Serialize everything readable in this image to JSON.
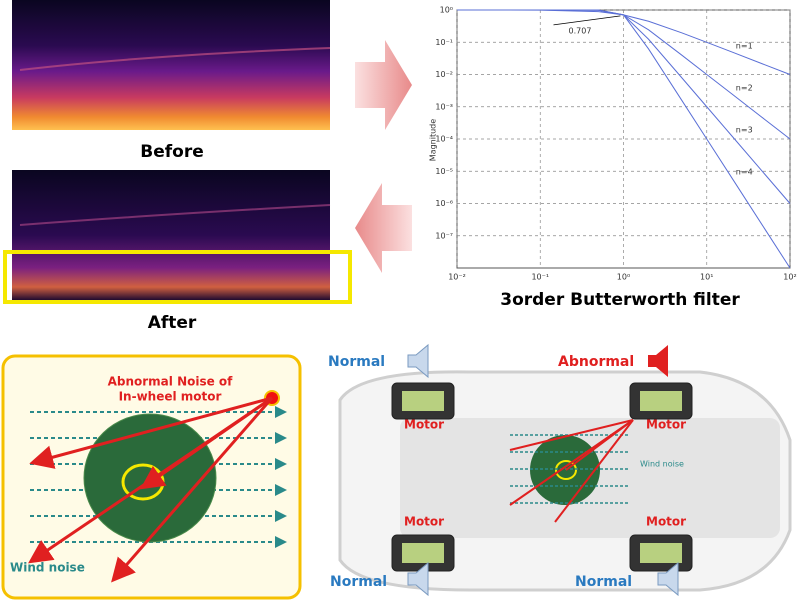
{
  "chart_data": {
    "type": "line",
    "title": "3order Butterworth filter",
    "y_label": "Magnitude",
    "log_x": true,
    "log_y": true,
    "grid": true,
    "x": [
      0.01,
      0.1,
      0.5,
      1,
      2,
      5,
      10,
      20,
      50,
      100
    ],
    "series": [
      {
        "name": "n=1",
        "color": "#5a6fd6",
        "values": [
          1,
          0.995,
          0.894,
          0.707,
          0.447,
          0.196,
          0.0995,
          0.05,
          0.02,
          0.01
        ]
      },
      {
        "name": "n=2",
        "color": "#5a6fd6",
        "values": [
          1,
          1,
          0.97,
          0.707,
          0.243,
          0.04,
          0.01,
          0.0025,
          0.0004,
          0.0001
        ]
      },
      {
        "name": "n=3",
        "color": "#5a6fd6",
        "values": [
          1,
          1,
          0.992,
          0.707,
          0.124,
          0.008,
          0.001,
          0.000125,
          8e-06,
          1e-06
        ]
      },
      {
        "name": "n=4",
        "color": "#5a6fd6",
        "values": [
          1,
          1,
          0.998,
          0.707,
          0.062,
          0.0016,
          0.0001,
          6.25e-06,
          1.6e-07,
          1e-08
        ]
      }
    ],
    "xlim": [
      0.01,
      100
    ],
    "xticks": [
      {
        "value": 0.01,
        "label": "10⁻²"
      },
      {
        "value": 0.1,
        "label": "10⁻¹"
      },
      {
        "value": 1,
        "label": "10⁰"
      },
      {
        "value": 10,
        "label": "10¹"
      },
      {
        "value": 100,
        "label": "10²"
      }
    ],
    "ylim": [
      1e-08,
      1
    ],
    "yticks": [
      {
        "value": 1,
        "label": "10⁰"
      },
      {
        "value": 0.1,
        "label": "10⁻¹"
      },
      {
        "value": 0.01,
        "label": "10⁻²"
      },
      {
        "value": 0.001,
        "label": "10⁻³"
      },
      {
        "value": 0.0001,
        "label": "10⁻⁴"
      },
      {
        "value": 1e-05,
        "label": "10⁻⁵"
      },
      {
        "value": 1e-06,
        "label": "10⁻⁶"
      },
      {
        "value": 1e-07,
        "label": "10⁻⁷"
      }
    ],
    "annotation": {
      "text": "0.707",
      "x": 1,
      "y": 0.707
    }
  },
  "spectrograms": {
    "before_label": "Before",
    "after_label": "After"
  },
  "noise_panel": {
    "abnormal_noise_label": [
      "Abnormal Noise of",
      "In-wheel motor"
    ],
    "wind_noise_label": "Wind noise"
  },
  "car_panel": {
    "front_left": "Normal",
    "front_right": "Abnormal",
    "rear_left": "Normal",
    "rear_right": "Normal",
    "motor_labels": [
      "Motor",
      "Motor",
      "Motor",
      "Motor"
    ],
    "wind_noise_label": "Wind noise"
  }
}
